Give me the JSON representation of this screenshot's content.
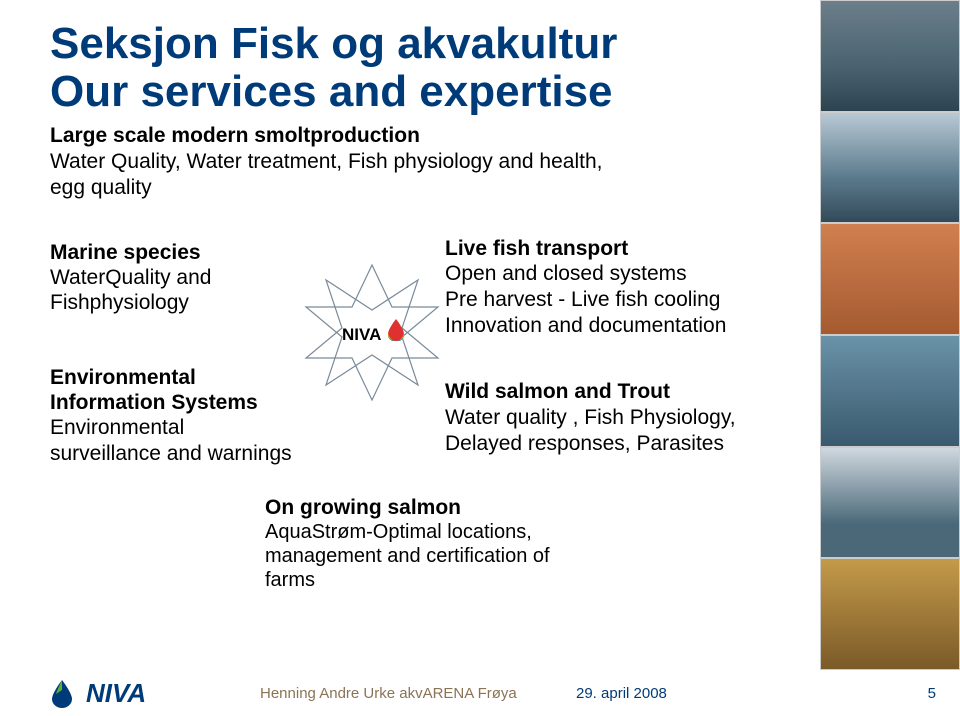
{
  "title": {
    "line1": "Seksjon Fisk og akvakultur",
    "line2": "Our services and expertise",
    "color": "#003b79"
  },
  "intro": {
    "lead": "Large scale modern smoltproduction",
    "body": "Water Quality, Water treatment, Fish physiology and health, egg quality"
  },
  "left": {
    "block1": {
      "head": "Marine species",
      "body": "WaterQuality and Fishphysiology"
    },
    "block2": {
      "head": "Environmental Information Systems",
      "body": "Environmental surveillance and warnings"
    }
  },
  "center_logo": {
    "label": "NIVA",
    "star_stroke": "#7a8a99",
    "drop_colors": [
      "#e03030",
      "#f0b000",
      "#30c040",
      "#1060d0"
    ]
  },
  "right": {
    "block1": {
      "head": "Live fish transport",
      "body": "Open and closed systems\nPre harvest  - Live fish cooling\nInnovation and documentation"
    },
    "block2": {
      "head": "Wild salmon and Trout",
      "body": "Water quality , Fish Physiology, Delayed responses, Parasites"
    }
  },
  "bottom": {
    "head": "On growing salmon",
    "body": "AquaStrøm-Optimal locations, management and certification of farms"
  },
  "images": [
    {
      "name": "fjord-farm"
    },
    {
      "name": "vessel"
    },
    {
      "name": "fish-measure"
    },
    {
      "name": "net-pen"
    },
    {
      "name": "ship"
    },
    {
      "name": "salmon-underwater"
    }
  ],
  "footer": {
    "logo_text": "NIVA",
    "logo_color": "#003b79",
    "center": "Henning Andre Urke akvARENA Frøya",
    "date": "29. april 2008",
    "page": "5"
  }
}
